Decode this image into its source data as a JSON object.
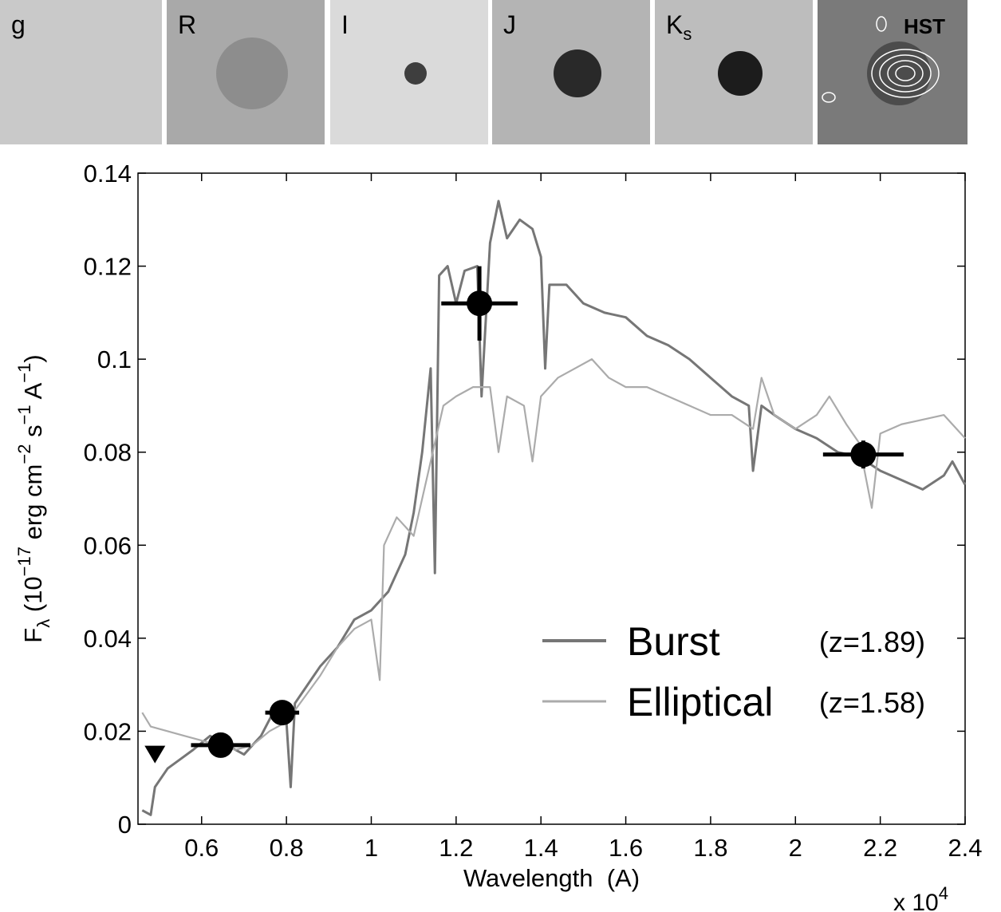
{
  "image_panels": [
    {
      "label": "g"
    },
    {
      "label": "R"
    },
    {
      "label": "I"
    },
    {
      "label": "J"
    },
    {
      "label": "K",
      "subscript": "s"
    },
    {
      "label": "HST"
    }
  ],
  "chart_data": {
    "type": "line",
    "xlabel": "Wavelength  (A)",
    "x_multiplier": {
      "base": "x 10",
      "exponent": "4"
    },
    "ylabel_parts": [
      {
        "text": "F"
      },
      {
        "text": "λ",
        "sub": true
      },
      {
        "text": " (10"
      },
      {
        "text": "−17",
        "sup": true
      },
      {
        "text": " erg cm"
      },
      {
        "text": "−2",
        "sup": true
      },
      {
        "text": " s"
      },
      {
        "text": "−1",
        "sup": true
      },
      {
        "text": " A"
      },
      {
        "text": "−1",
        "sup": true
      },
      {
        "text": ")"
      }
    ],
    "xlim": [
      0.45,
      2.4
    ],
    "xticks": [
      0.6,
      0.8,
      1,
      1.2,
      1.4,
      1.6,
      1.8,
      2,
      2.2,
      2.4
    ],
    "ylim": [
      0,
      0.14
    ],
    "yticks": [
      0,
      0.02,
      0.04,
      0.06,
      0.08,
      0.1,
      0.12,
      0.14
    ],
    "grid": false,
    "series": [
      {
        "name": "Burst",
        "note": "(z=1.89)",
        "color": "#767676",
        "x": [
          0.46,
          0.48,
          0.49,
          0.52,
          0.55,
          0.58,
          0.62,
          0.66,
          0.7,
          0.74,
          0.78,
          0.8,
          0.81,
          0.82,
          0.85,
          0.88,
          0.92,
          0.96,
          1.0,
          1.04,
          1.08,
          1.1,
          1.12,
          1.14,
          1.15,
          1.16,
          1.18,
          1.2,
          1.22,
          1.25,
          1.26,
          1.28,
          1.3,
          1.32,
          1.35,
          1.38,
          1.4,
          1.41,
          1.42,
          1.46,
          1.5,
          1.55,
          1.6,
          1.65,
          1.7,
          1.75,
          1.8,
          1.85,
          1.89,
          1.9,
          1.92,
          1.95,
          2.0,
          2.05,
          2.1,
          2.15,
          2.2,
          2.25,
          2.3,
          2.35,
          2.37,
          2.4
        ],
        "values": [
          0.003,
          0.002,
          0.008,
          0.012,
          0.014,
          0.016,
          0.019,
          0.017,
          0.015,
          0.019,
          0.026,
          0.022,
          0.008,
          0.026,
          0.03,
          0.034,
          0.038,
          0.044,
          0.046,
          0.05,
          0.058,
          0.067,
          0.08,
          0.098,
          0.054,
          0.118,
          0.12,
          0.112,
          0.119,
          0.12,
          0.092,
          0.125,
          0.134,
          0.126,
          0.13,
          0.128,
          0.122,
          0.098,
          0.116,
          0.116,
          0.112,
          0.11,
          0.109,
          0.105,
          0.103,
          0.1,
          0.096,
          0.092,
          0.09,
          0.076,
          0.09,
          0.088,
          0.085,
          0.083,
          0.08,
          0.079,
          0.076,
          0.074,
          0.072,
          0.075,
          0.078,
          0.073
        ]
      },
      {
        "name": "Elliptical",
        "note": "(z=1.58)",
        "color": "#ababab",
        "x": [
          0.46,
          0.48,
          0.52,
          0.56,
          0.6,
          0.64,
          0.68,
          0.72,
          0.76,
          0.8,
          0.84,
          0.88,
          0.92,
          0.96,
          1.0,
          1.02,
          1.03,
          1.06,
          1.1,
          1.14,
          1.17,
          1.2,
          1.24,
          1.28,
          1.3,
          1.32,
          1.36,
          1.38,
          1.4,
          1.44,
          1.48,
          1.52,
          1.56,
          1.6,
          1.65,
          1.7,
          1.75,
          1.8,
          1.85,
          1.9,
          1.92,
          1.95,
          2.0,
          2.05,
          2.08,
          2.12,
          2.15,
          2.18,
          2.2,
          2.25,
          2.3,
          2.35,
          2.4
        ],
        "values": [
          0.024,
          0.021,
          0.02,
          0.019,
          0.018,
          0.017,
          0.016,
          0.017,
          0.02,
          0.022,
          0.027,
          0.032,
          0.038,
          0.042,
          0.044,
          0.031,
          0.06,
          0.066,
          0.062,
          0.078,
          0.09,
          0.092,
          0.094,
          0.094,
          0.08,
          0.092,
          0.09,
          0.078,
          0.092,
          0.096,
          0.098,
          0.1,
          0.096,
          0.094,
          0.094,
          0.092,
          0.09,
          0.088,
          0.088,
          0.085,
          0.096,
          0.088,
          0.085,
          0.088,
          0.092,
          0.086,
          0.082,
          0.068,
          0.084,
          0.086,
          0.087,
          0.088,
          0.083
        ]
      }
    ],
    "points": {
      "x": [
        0.645,
        0.79,
        1.255,
        2.16
      ],
      "values": [
        0.017,
        0.024,
        0.112,
        0.0795
      ],
      "xerr": [
        0.07,
        0.04,
        0.09,
        0.095
      ],
      "yerr": [
        0.001,
        0.001,
        0.008,
        0.003
      ]
    },
    "upper_limits": {
      "x": [
        0.49
      ],
      "values": [
        0.015
      ]
    }
  }
}
